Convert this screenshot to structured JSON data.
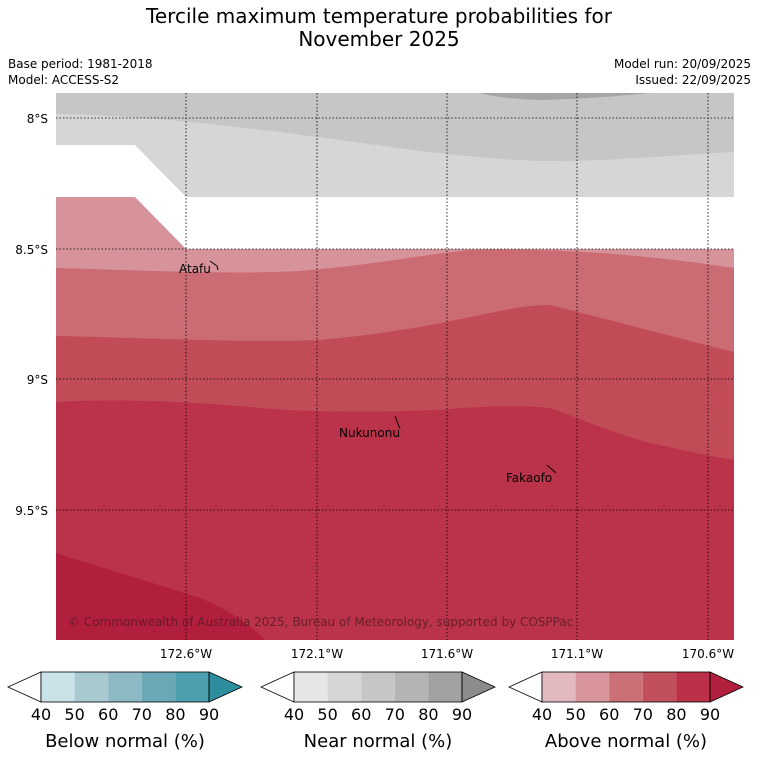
{
  "title_line1": "Tercile maximum temperature probabilities for",
  "title_line2": "November 2025",
  "base_period": "Base period: 1981-2018",
  "model": "Model: ACCESS-S2",
  "model_run": "Model run: 20/09/2025",
  "issued": "Issued: 22/09/2025",
  "copyright": "© Commonwealth of Australia 2025, Bureau of Meteorology, supported by COSPPac",
  "lat_labels": [
    "8°S",
    "8.5°S",
    "9°S",
    "9.5°S"
  ],
  "lon_labels": [
    "172.6°W",
    "172.1°W",
    "171.6°W",
    "171.1°W",
    "170.6°W"
  ],
  "places": [
    "Atafu",
    "Nukunonu",
    "Fakaofo"
  ],
  "colorbars": [
    {
      "label": "Below normal (%)",
      "ticks": [
        "40",
        "50",
        "60",
        "70",
        "80",
        "90"
      ],
      "colors": [
        "#c9e3e9",
        "#a8c9cf",
        "#8cb9c3",
        "#6aa8b5",
        "#4b9fae",
        "#2e8e9e"
      ]
    },
    {
      "label": "Near normal (%)",
      "ticks": [
        "40",
        "50",
        "60",
        "70",
        "80",
        "90"
      ],
      "colors": [
        "#e6e6e6",
        "#d6d6d6",
        "#c6c6c6",
        "#b4b4b4",
        "#a2a2a2",
        "#8c8c8c"
      ]
    },
    {
      "label": "Above normal (%)",
      "ticks": [
        "40",
        "50",
        "60",
        "70",
        "80",
        "90"
      ],
      "colors": [
        "#e1b9be",
        "#d8959c",
        "#cc7078",
        "#c24f5c",
        "#bb2f48",
        "#b11f3c"
      ]
    }
  ],
  "colors": {
    "near_light": "#d6d6d6",
    "near_mid": "#c6c6c6",
    "near_dark": "#a5a5a5",
    "above_50": "#d6939a",
    "above_60": "#cb6b74",
    "above_70": "#c14b57",
    "above_80": "#bb334a",
    "above_90": "#b11f3c"
  }
}
